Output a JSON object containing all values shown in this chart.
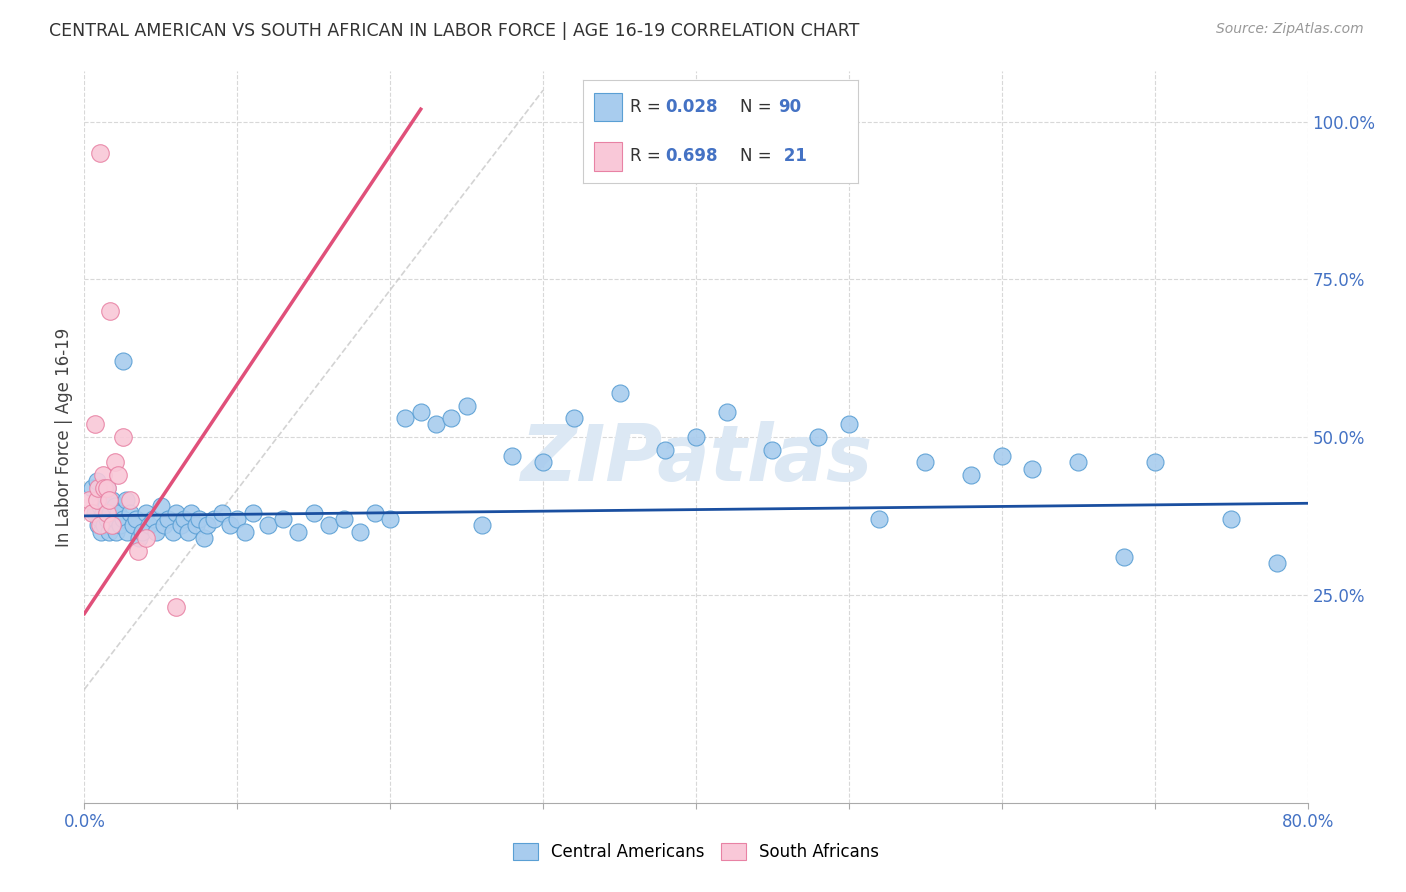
{
  "title": "CENTRAL AMERICAN VS SOUTH AFRICAN IN LABOR FORCE | AGE 16-19 CORRELATION CHART",
  "source": "Source: ZipAtlas.com",
  "ylabel": "In Labor Force | Age 16-19",
  "xlim": [
    0.0,
    0.8
  ],
  "ylim": [
    -0.08,
    1.08
  ],
  "xticks": [
    0.0,
    0.1,
    0.2,
    0.3,
    0.4,
    0.5,
    0.6,
    0.7,
    0.8
  ],
  "xticklabels": [
    "0.0%",
    "",
    "",
    "",
    "",
    "",
    "",
    "",
    "80.0%"
  ],
  "yticks_right": [
    0.25,
    0.5,
    0.75,
    1.0
  ],
  "ytick_right_labels": [
    "25.0%",
    "50.0%",
    "75.0%",
    "100.0%"
  ],
  "blue_color": "#a8ccee",
  "blue_edge": "#5a9fd4",
  "pink_color": "#f9c8d8",
  "pink_edge": "#e882a4",
  "trend_blue": "#1a4fa0",
  "trend_pink": "#e0507a",
  "trend_gray_dash": "#c8c8c8",
  "watermark_color": "#dce8f4",
  "grid_color": "#d8d8d8",
  "legend_r_blue": "0.028",
  "legend_n_blue": "90",
  "legend_r_pink": "0.698",
  "legend_n_pink": "21",
  "blue_scatter_x": [
    0.005,
    0.007,
    0.008,
    0.009,
    0.01,
    0.01,
    0.01,
    0.011,
    0.012,
    0.012,
    0.013,
    0.014,
    0.015,
    0.015,
    0.016,
    0.017,
    0.018,
    0.019,
    0.02,
    0.02,
    0.021,
    0.022,
    0.023,
    0.025,
    0.025,
    0.027,
    0.028,
    0.03,
    0.032,
    0.034,
    0.036,
    0.038,
    0.04,
    0.042,
    0.045,
    0.047,
    0.05,
    0.052,
    0.055,
    0.058,
    0.06,
    0.063,
    0.065,
    0.068,
    0.07,
    0.073,
    0.075,
    0.078,
    0.08,
    0.085,
    0.09,
    0.095,
    0.1,
    0.105,
    0.11,
    0.12,
    0.13,
    0.14,
    0.15,
    0.16,
    0.17,
    0.18,
    0.19,
    0.2,
    0.21,
    0.22,
    0.23,
    0.24,
    0.25,
    0.26,
    0.28,
    0.3,
    0.32,
    0.35,
    0.38,
    0.4,
    0.42,
    0.45,
    0.48,
    0.5,
    0.52,
    0.55,
    0.58,
    0.6,
    0.62,
    0.65,
    0.68,
    0.7,
    0.75,
    0.78
  ],
  "blue_scatter_y": [
    0.42,
    0.38,
    0.43,
    0.36,
    0.4,
    0.37,
    0.39,
    0.35,
    0.38,
    0.41,
    0.36,
    0.39,
    0.37,
    0.42,
    0.35,
    0.38,
    0.4,
    0.36,
    0.37,
    0.39,
    0.35,
    0.38,
    0.36,
    0.62,
    0.37,
    0.4,
    0.35,
    0.38,
    0.36,
    0.37,
    0.34,
    0.35,
    0.38,
    0.36,
    0.37,
    0.35,
    0.39,
    0.36,
    0.37,
    0.35,
    0.38,
    0.36,
    0.37,
    0.35,
    0.38,
    0.36,
    0.37,
    0.34,
    0.36,
    0.37,
    0.38,
    0.36,
    0.37,
    0.35,
    0.38,
    0.36,
    0.37,
    0.35,
    0.38,
    0.36,
    0.37,
    0.35,
    0.38,
    0.37,
    0.53,
    0.54,
    0.52,
    0.53,
    0.55,
    0.36,
    0.47,
    0.46,
    0.53,
    0.57,
    0.48,
    0.5,
    0.54,
    0.48,
    0.5,
    0.52,
    0.37,
    0.46,
    0.44,
    0.47,
    0.45,
    0.46,
    0.31,
    0.46,
    0.37,
    0.3
  ],
  "pink_scatter_x": [
    0.003,
    0.005,
    0.007,
    0.008,
    0.009,
    0.01,
    0.01,
    0.012,
    0.013,
    0.015,
    0.015,
    0.016,
    0.017,
    0.018,
    0.02,
    0.022,
    0.025,
    0.03,
    0.035,
    0.04,
    0.06
  ],
  "pink_scatter_y": [
    0.4,
    0.38,
    0.52,
    0.4,
    0.42,
    0.95,
    0.36,
    0.44,
    0.42,
    0.42,
    0.38,
    0.4,
    0.7,
    0.36,
    0.46,
    0.44,
    0.5,
    0.4,
    0.32,
    0.34,
    0.23
  ],
  "pink_trend_x0": 0.0,
  "pink_trend_y0": 0.22,
  "pink_trend_x1": 0.22,
  "pink_trend_y1": 1.02,
  "blue_trend_x0": 0.0,
  "blue_trend_y0": 0.375,
  "blue_trend_x1": 0.8,
  "blue_trend_y1": 0.395
}
